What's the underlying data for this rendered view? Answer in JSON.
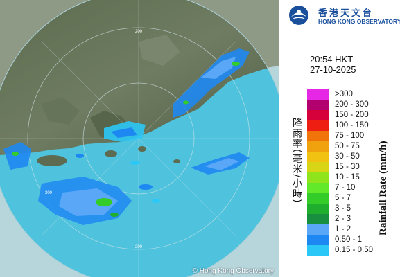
{
  "header": {
    "org_name_cn": "香港天文台",
    "org_name_en": "HONG KONG OBSERVATORY",
    "time": "20:54 HKT",
    "date": "27-10-2025"
  },
  "legend": {
    "title_cn": "降雨率(毫米/小時)",
    "title_en": "Rainfall Rate (mm/h)",
    "items": [
      {
        "label": ">300",
        "color": "#e628e6"
      },
      {
        "label": "200 - 300",
        "color": "#b3006f"
      },
      {
        "label": "150 - 200",
        "color": "#d6003a"
      },
      {
        "label": "100 - 150",
        "color": "#ef1e12"
      },
      {
        "label": "75 - 100",
        "color": "#f1740b"
      },
      {
        "label": "50 - 75",
        "color": "#efa20d"
      },
      {
        "label": "30 - 50",
        "color": "#f2c212"
      },
      {
        "label": "15 - 30",
        "color": "#d8d416"
      },
      {
        "label": "10 - 15",
        "color": "#8fe41c"
      },
      {
        "label": "7 - 10",
        "color": "#62ea2a"
      },
      {
        "label": "5 - 7",
        "color": "#34cc29"
      },
      {
        "label": "3 - 5",
        "color": "#20ae2f"
      },
      {
        "label": "2 - 3",
        "color": "#188f3f"
      },
      {
        "label": "1 - 2",
        "color": "#5aa7f7"
      },
      {
        "label": "0.50 - 1",
        "color": "#1e88f2"
      },
      {
        "label": "0.15 - 0.50",
        "color": "#2bc8f7"
      }
    ]
  },
  "map": {
    "copyright": "© Hong Kong Observatory",
    "range_labels": [
      "200",
      "200",
      "200"
    ]
  }
}
